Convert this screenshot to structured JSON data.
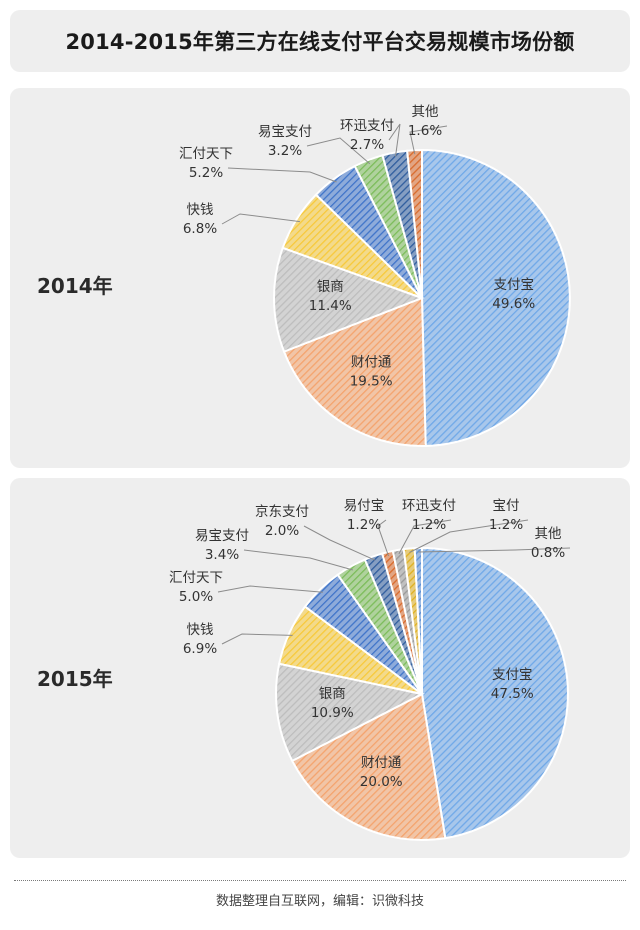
{
  "title": "2014-2015年第三方在线支付平台交易规模市场份额",
  "footer": "数据整理自互联网，编辑：识微科技",
  "chart_data": [
    {
      "type": "pie",
      "year_label": "2014年",
      "unit": "%",
      "slices": [
        {
          "name": "支付宝",
          "value": 49.6,
          "label": "49.6%",
          "color": "#6fa8e8"
        },
        {
          "name": "财付通",
          "value": 19.5,
          "label": "19.5%",
          "color": "#f4a36d"
        },
        {
          "name": "银商",
          "value": 11.4,
          "label": "11.4%",
          "color": "#bdbdbd"
        },
        {
          "name": "快钱",
          "value": 6.8,
          "label": "6.8%",
          "color": "#f7c93a"
        },
        {
          "name": "汇付天下",
          "value": 5.2,
          "label": "5.2%",
          "color": "#3f74c9"
        },
        {
          "name": "易宝支付",
          "value": 3.2,
          "label": "3.2%",
          "color": "#7cbc5a"
        },
        {
          "name": "环迅支付",
          "value": 2.7,
          "label": "2.7%",
          "color": "#2f5d9e"
        },
        {
          "name": "其他",
          "value": 1.6,
          "label": "1.6%",
          "color": "#d96a2b"
        }
      ]
    },
    {
      "type": "pie",
      "year_label": "2015年",
      "unit": "%",
      "slices": [
        {
          "name": "支付宝",
          "value": 47.5,
          "label": "47.5%",
          "color": "#6fa8e8"
        },
        {
          "name": "财付通",
          "value": 20.0,
          "label": "20.0%",
          "color": "#f4a36d"
        },
        {
          "name": "银商",
          "value": 10.9,
          "label": "10.9%",
          "color": "#bdbdbd"
        },
        {
          "name": "快钱",
          "value": 6.9,
          "label": "6.9%",
          "color": "#f7c93a"
        },
        {
          "name": "汇付天下",
          "value": 5.0,
          "label": "5.0%",
          "color": "#3f74c9"
        },
        {
          "name": "易宝支付",
          "value": 3.4,
          "label": "3.4%",
          "color": "#7cbc5a"
        },
        {
          "name": "京东支付",
          "value": 2.0,
          "label": "2.0%",
          "color": "#2f5d9e"
        },
        {
          "name": "易付宝",
          "value": 1.2,
          "label": "1.2%",
          "color": "#d96a2b"
        },
        {
          "name": "环迅支付",
          "value": 1.2,
          "label": "1.2%",
          "color": "#9a9a9a"
        },
        {
          "name": "宝付",
          "value": 1.2,
          "label": "1.2%",
          "color": "#e0b020"
        },
        {
          "name": "其他",
          "value": 0.8,
          "label": "0.8%",
          "color": "#5a8fd6"
        }
      ]
    }
  ]
}
